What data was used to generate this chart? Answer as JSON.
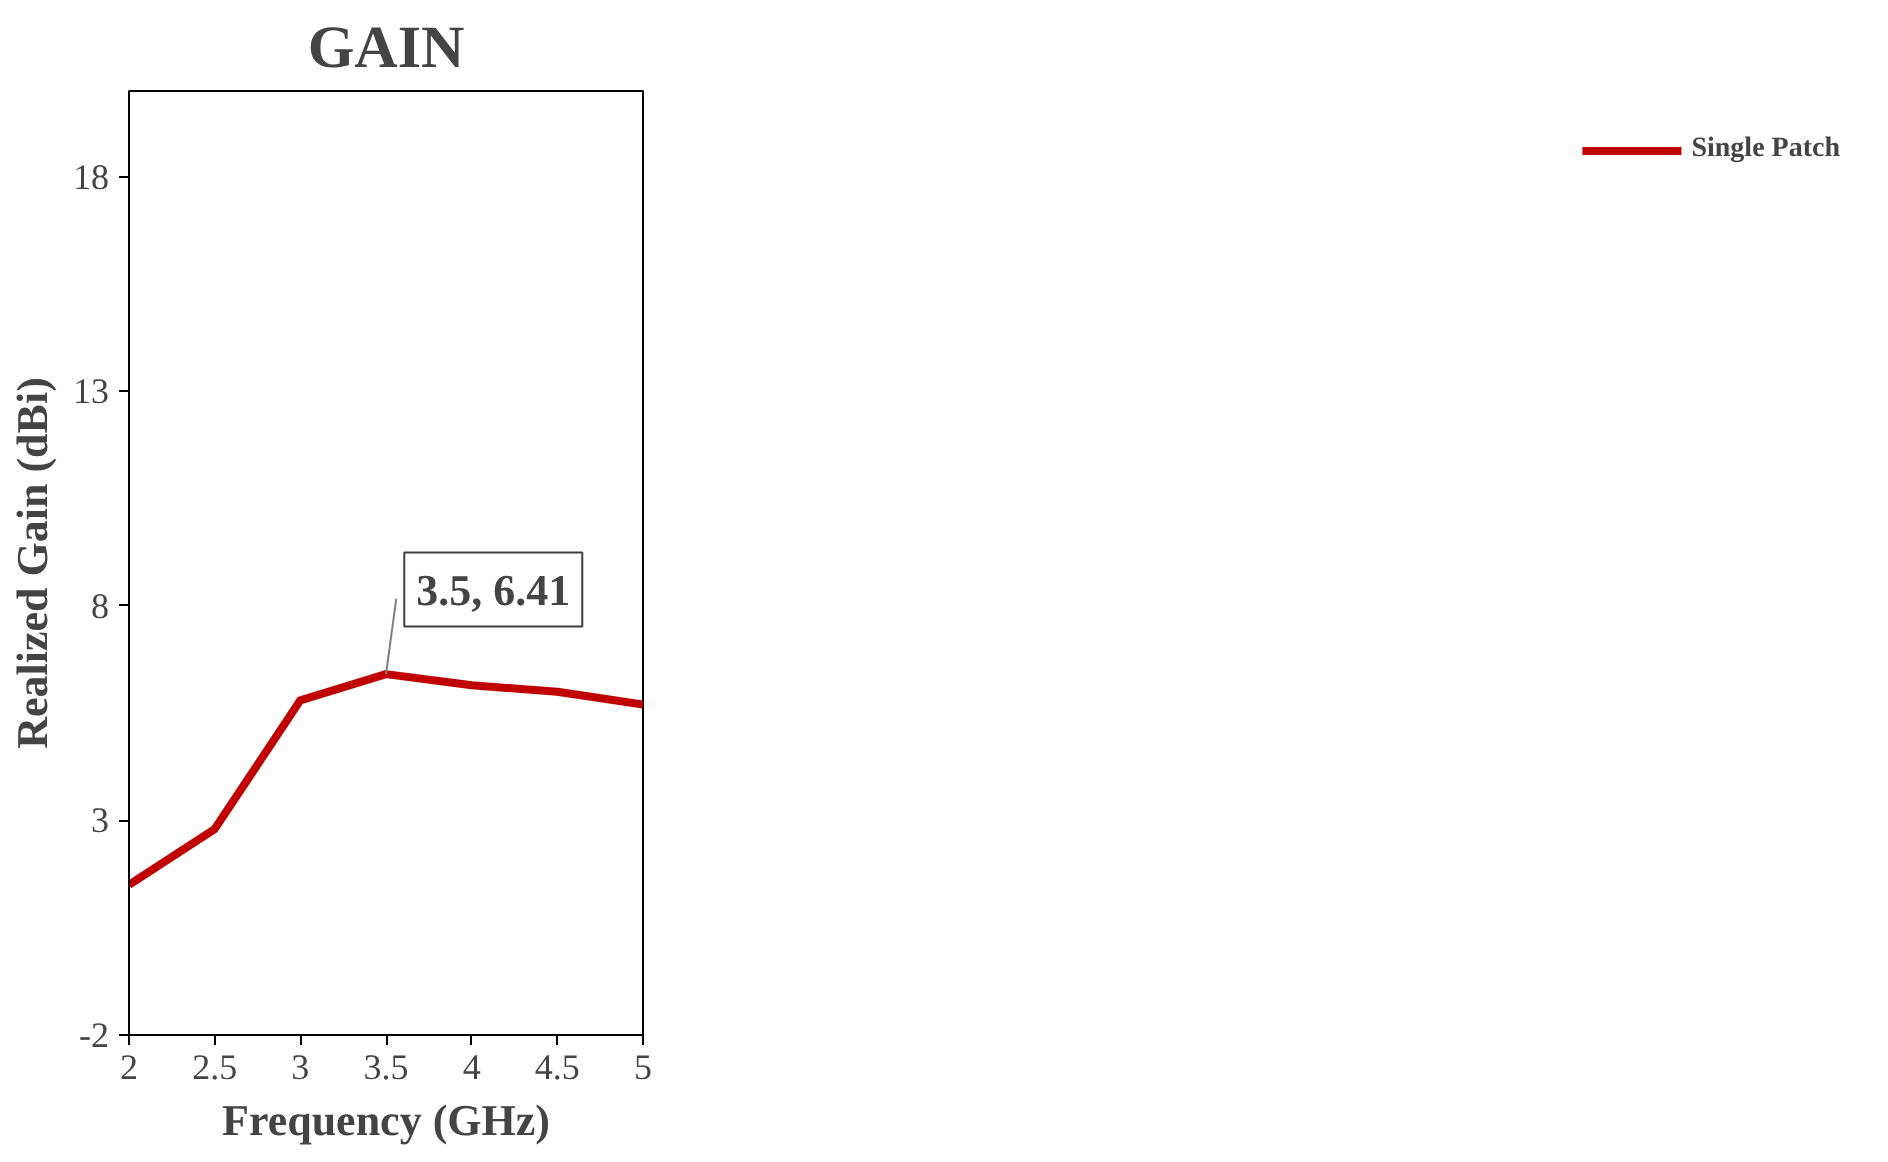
{
  "chart_data": {
    "type": "line",
    "title": "GAIN",
    "xlabel": "Frequency (GHz)",
    "ylabel": "Realized Gain (dBi)",
    "x": [
      2,
      2.5,
      3,
      3.5,
      4,
      4.5,
      5
    ],
    "series": [
      {
        "name": "Single Patch",
        "color": "#c00000",
        "values": [
          1.5,
          2.8,
          5.8,
          6.41,
          6.15,
          6.0,
          5.7
        ]
      }
    ],
    "xlim": [
      2,
      5
    ],
    "ylim": [
      -2,
      20
    ],
    "xticks": [
      2,
      2.5,
      3,
      3.5,
      4,
      4.5,
      5
    ],
    "yticks": [
      -2,
      3,
      8,
      13,
      18
    ],
    "grid": false,
    "legend": "right",
    "marker": "none",
    "line_style": "solid",
    "annotations": [
      {
        "text": "3.5, 6.41",
        "x": 3.5,
        "y": 6.41
      }
    ]
  }
}
